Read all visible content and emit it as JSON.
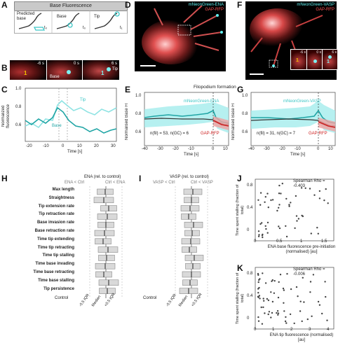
{
  "panels": {
    "A": {
      "label": "A",
      "header": "Base Fluorescence",
      "sub": [
        {
          "title": "Predicted base",
          "time": "t₀"
        },
        {
          "title": "Base",
          "time": "t₀"
        },
        {
          "title": "Tip",
          "time": "t₁"
        }
      ]
    },
    "B": {
      "label": "B",
      "frames": [
        "-6 s",
        "0 s",
        "6 s"
      ],
      "base_label": "Base",
      "tip_label": "Tip",
      "marker1": "1",
      "marker2": "1"
    },
    "C": {
      "label": "C",
      "ylabel": "Normalized fluorescence",
      "xlabel": "Time [s]",
      "xticks": [
        "-20",
        "-10",
        "0",
        "10",
        "20",
        "30"
      ],
      "yticks": [
        "0.6",
        "0.8",
        "1.0"
      ],
      "tip_label": "Tip",
      "base_label": "Base"
    },
    "D": {
      "label": "D",
      "title1": "mNeonGreen-ENA",
      "title2": "GAP-RFP"
    },
    "E": {
      "label": "E",
      "title": "Filopodium formation",
      "series1": "mNeonGreen-ENA",
      "series2": "GAP-RFP",
      "ylabel": "Normalised Base FI",
      "xlabel": "Time [s]",
      "xticks": [
        "-40",
        "-30",
        "-20",
        "-10",
        "0",
        "10"
      ],
      "yticks": [
        "0.6",
        "0.8",
        "1.0"
      ],
      "n_text": "n(fil) = 53, n(GC) = 6"
    },
    "F": {
      "label": "F",
      "title1": "mNeonGreen-VASP",
      "title2": "GAP-RFP",
      "frames": [
        "-6 s",
        "0 s",
        "6 s"
      ],
      "marker1": "1",
      "marker2": "1"
    },
    "G": {
      "label": "G",
      "series1": "mNeonGreen-VASP",
      "series2": "GAP-RFP",
      "ylabel": "Normalised Base FI",
      "xlabel": "Time [s]",
      "xticks": [
        "-40",
        "-30",
        "-20",
        "-10",
        "0",
        "10"
      ],
      "yticks": [
        "0.6",
        "0.8",
        "1.0"
      ],
      "n_text": "n(fil) = 31, n(GC) = 7"
    },
    "H": {
      "label": "H",
      "title": "ENA (rel. to control)",
      "left_hdr": "ENA < Ctrl",
      "right_hdr": "Ctrl < ENA",
      "rows": [
        "Max length",
        "Straightness",
        "Tip extension rate",
        "Tip retraction rate",
        "Base invasion rate",
        "Base retraction rate",
        "Time tip extending",
        "Time tip retracting",
        "Time tip stalling",
        "Time base invading",
        "Time base retracting",
        "Time base stalling",
        "Tip persistence"
      ],
      "control": "Control",
      "axis": [
        "-0.5 IQR",
        "Median",
        "+0.5 IQR"
      ]
    },
    "I": {
      "label": "I",
      "title": "VASP (rel. to control)",
      "left_hdr": "VASP < Ctrl",
      "right_hdr": "Ctrl < VASP",
      "control": "Control",
      "axis": [
        "-0.5 IQR",
        "Median",
        "+0.5 IQR"
      ]
    },
    "J": {
      "label": "J",
      "annot": "Spearman Rho = -0.403",
      "ylabel": "Time spent stalling (fraction of total)",
      "xlabel": "ENA base fluorescence pre-initiation (normalised) [au]",
      "xticks": [
        "0",
        "0.5",
        "1",
        "1.5"
      ],
      "yticks": [
        "0",
        "0.4",
        "0.8"
      ]
    },
    "K": {
      "label": "K",
      "annot": "Spearman Rho = -0.006",
      "ylabel": "Time spent stalling (fraction of total)",
      "xlabel": "ENA tip fluorescence (normalised) [au]",
      "xticks": [
        "0",
        "1",
        "2",
        "3",
        "4"
      ],
      "yticks": [
        "0",
        "0.4",
        "0.8"
      ]
    }
  },
  "colors": {
    "cyan": "#3cc6c6",
    "red": "#d42a2a",
    "dark": "#222222",
    "grey": "#bdbdbd"
  }
}
